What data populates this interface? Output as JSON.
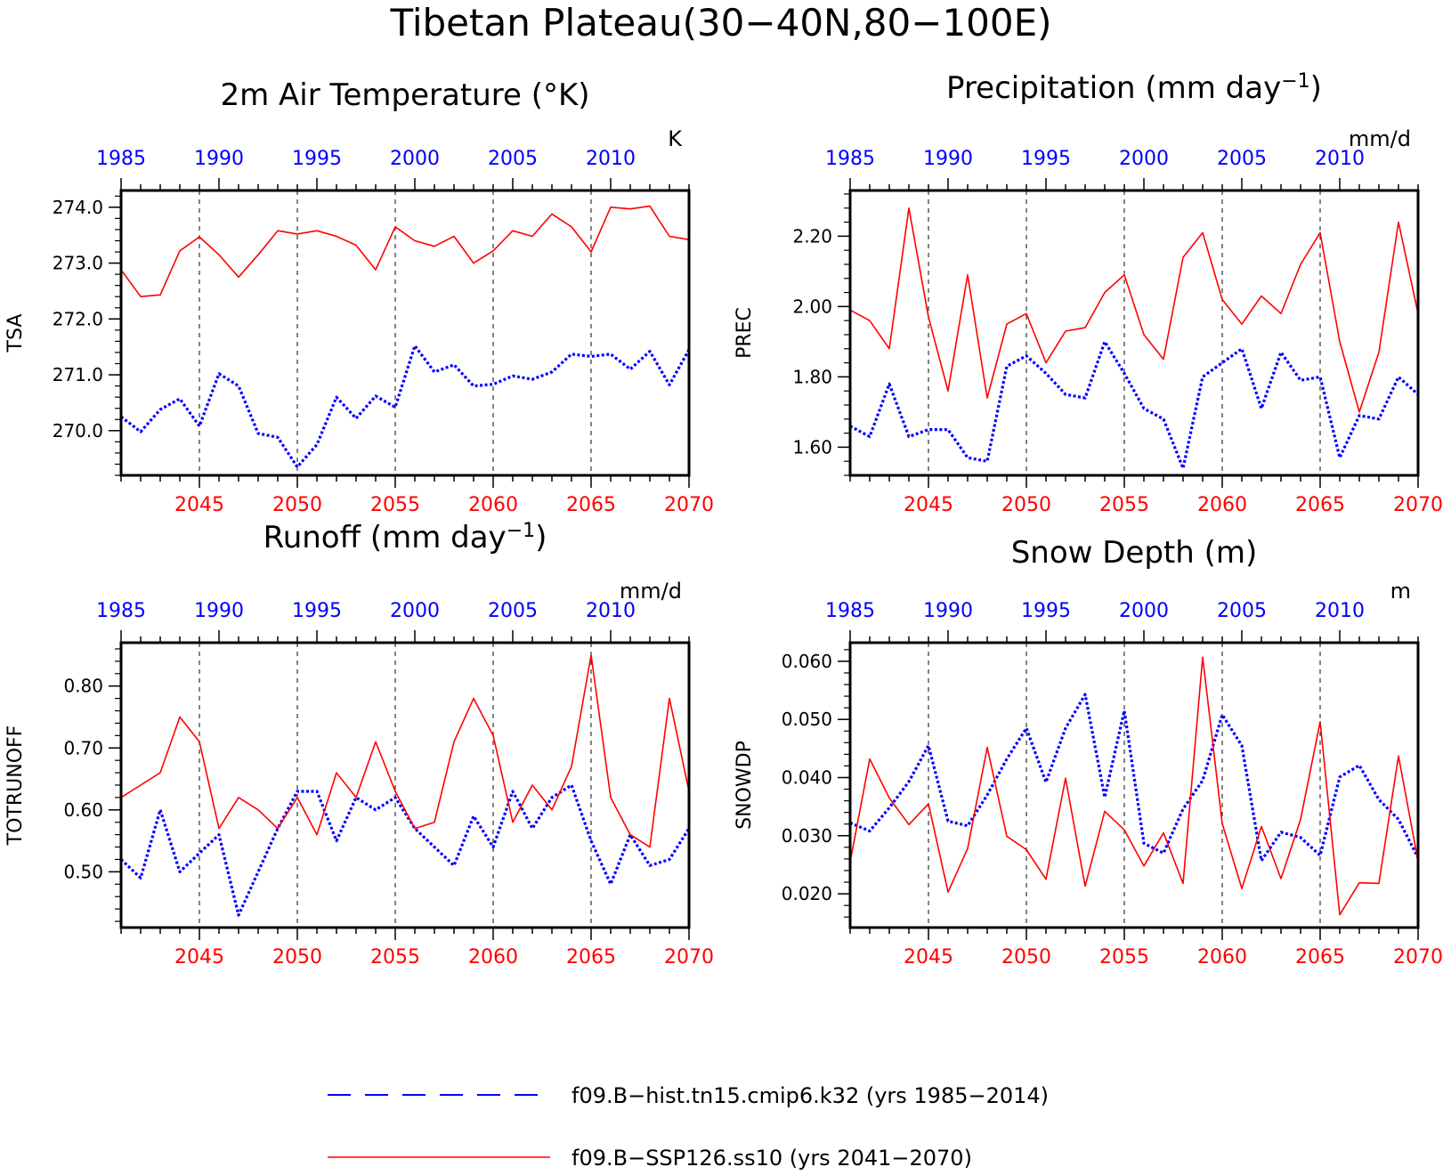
{
  "figure": {
    "title": "Tibetan Plateau(30−40N,80−100E)",
    "hist_color": "#0000ff",
    "ssp_color": "#ff0000"
  },
  "legend": [
    {
      "label": "f09.B−hist.tn15.cmip6.k32 (yrs 1985−2014)",
      "color": "#0000ff",
      "style": "dashed"
    },
    {
      "label": "f09.B−SSP126.ss10 (yrs 2041−2070)",
      "color": "#ff0000",
      "style": "solid"
    }
  ],
  "chart_data": [
    {
      "type": "line",
      "title": "2m Air Temperature (°K)",
      "ylabel": "TSA",
      "unit": "K",
      "ylim": [
        269.2,
        274.3
      ],
      "yticks": [
        270.0,
        271.0,
        272.0,
        273.0,
        274.0
      ],
      "ytick_labels": [
        "270.0",
        "271.0",
        "272.0",
        "273.0",
        "274.0"
      ],
      "top_axis": {
        "xlim": [
          1985,
          2014
        ],
        "ticks": [
          1985,
          1990,
          1995,
          2000,
          2005,
          2010
        ],
        "labels": [
          "1985",
          "1990",
          "1995",
          "2000",
          "2005",
          "2010"
        ]
      },
      "bottom_axis": {
        "xlim": [
          2041,
          2070
        ],
        "ticks": [
          2045,
          2050,
          2055,
          2060,
          2065,
          2070
        ],
        "labels": [
          "2045",
          "2050",
          "2055",
          "2060",
          "2065",
          "2070"
        ]
      },
      "series": [
        {
          "name": "f09.B−hist.tn15.cmip6.k32",
          "axis": "top",
          "values": [
            270.25,
            269.98,
            270.38,
            270.57,
            270.08,
            271.02,
            270.8,
            269.95,
            269.88,
            269.35,
            269.75,
            270.6,
            270.22,
            270.62,
            270.42,
            271.52,
            271.05,
            271.18,
            270.8,
            270.83,
            270.98,
            270.92,
            271.05,
            271.37,
            271.33,
            271.37,
            271.1,
            271.42,
            270.82,
            271.45
          ]
        },
        {
          "name": "f09.B−SSP126.ss10",
          "axis": "bottom",
          "values": [
            272.88,
            272.4,
            272.43,
            273.22,
            273.47,
            273.15,
            272.75,
            273.15,
            273.58,
            273.52,
            273.58,
            273.48,
            273.32,
            272.88,
            273.65,
            273.4,
            273.3,
            273.48,
            273.0,
            273.22,
            273.58,
            273.48,
            273.88,
            273.65,
            273.2,
            274.0,
            273.97,
            274.02,
            273.48,
            273.42
          ]
        }
      ]
    },
    {
      "type": "line",
      "title": "Precipitation (mm day⁻¹)",
      "ylabel": "PREC",
      "unit": "mm/d",
      "ylim": [
        1.52,
        2.33
      ],
      "yticks": [
        1.6,
        1.8,
        2.0,
        2.2
      ],
      "ytick_labels": [
        "1.60",
        "1.80",
        "2.00",
        "2.20"
      ],
      "top_axis": {
        "xlim": [
          1985,
          2014
        ],
        "ticks": [
          1985,
          1990,
          1995,
          2000,
          2005,
          2010
        ],
        "labels": [
          "1985",
          "1990",
          "1995",
          "2000",
          "2005",
          "2010"
        ]
      },
      "bottom_axis": {
        "xlim": [
          2041,
          2070
        ],
        "ticks": [
          2045,
          2050,
          2055,
          2060,
          2065,
          2070
        ],
        "labels": [
          "2045",
          "2050",
          "2055",
          "2060",
          "2065",
          "2070"
        ]
      },
      "series": [
        {
          "name": "f09.B−hist.tn15.cmip6.k32",
          "axis": "top",
          "values": [
            1.66,
            1.63,
            1.78,
            1.63,
            1.65,
            1.65,
            1.57,
            1.56,
            1.83,
            1.86,
            1.81,
            1.75,
            1.74,
            1.9,
            1.81,
            1.71,
            1.68,
            1.54,
            1.8,
            1.84,
            1.88,
            1.71,
            1.87,
            1.79,
            1.8,
            1.57,
            1.69,
            1.68,
            1.8,
            1.75
          ]
        },
        {
          "name": "f09.B−SSP126.ss10",
          "axis": "bottom",
          "values": [
            1.99,
            1.96,
            1.88,
            2.28,
            1.97,
            1.76,
            2.09,
            1.74,
            1.95,
            1.98,
            1.84,
            1.93,
            1.94,
            2.04,
            2.09,
            1.92,
            1.85,
            2.14,
            2.21,
            2.02,
            1.95,
            2.03,
            1.98,
            2.12,
            2.21,
            1.9,
            1.7,
            1.87,
            2.24,
            1.98
          ]
        }
      ]
    },
    {
      "type": "line",
      "title": "Runoff (mm day⁻¹)",
      "ylabel": "TOTRUNOFF",
      "unit": "mm/d",
      "ylim": [
        0.41,
        0.87
      ],
      "yticks": [
        0.5,
        0.6,
        0.7,
        0.8
      ],
      "ytick_labels": [
        "0.50",
        "0.60",
        "0.70",
        "0.80"
      ],
      "top_axis": {
        "xlim": [
          1985,
          2014
        ],
        "ticks": [
          1985,
          1990,
          1995,
          2000,
          2005,
          2010
        ],
        "labels": [
          "1985",
          "1990",
          "1995",
          "2000",
          "2005",
          "2010"
        ]
      },
      "bottom_axis": {
        "xlim": [
          2041,
          2070
        ],
        "ticks": [
          2045,
          2050,
          2055,
          2060,
          2065,
          2070
        ],
        "labels": [
          "2045",
          "2050",
          "2055",
          "2060",
          "2065",
          "2070"
        ]
      },
      "series": [
        {
          "name": "f09.B−hist.tn15.cmip6.k32",
          "axis": "top",
          "values": [
            0.52,
            0.49,
            0.6,
            0.5,
            0.53,
            0.56,
            0.43,
            0.5,
            0.57,
            0.63,
            0.63,
            0.55,
            0.62,
            0.6,
            0.62,
            0.57,
            0.54,
            0.51,
            0.59,
            0.54,
            0.63,
            0.57,
            0.62,
            0.64,
            0.55,
            0.48,
            0.56,
            0.51,
            0.52,
            0.57
          ]
        },
        {
          "name": "f09.B−SSP126.ss10",
          "axis": "bottom",
          "values": [
            0.62,
            0.64,
            0.66,
            0.75,
            0.71,
            0.57,
            0.62,
            0.6,
            0.57,
            0.62,
            0.56,
            0.66,
            0.62,
            0.71,
            0.63,
            0.57,
            0.58,
            0.71,
            0.78,
            0.72,
            0.58,
            0.64,
            0.6,
            0.67,
            0.85,
            0.62,
            0.56,
            0.54,
            0.78,
            0.63
          ]
        }
      ]
    },
    {
      "type": "line",
      "title": "Snow Depth (m)",
      "ylabel": "SNOWDP",
      "unit": "m",
      "ylim": [
        0.0142,
        0.0632
      ],
      "yticks": [
        0.02,
        0.03,
        0.04,
        0.05,
        0.06
      ],
      "ytick_labels": [
        "0.020",
        "0.030",
        "0.040",
        "0.050",
        "0.060"
      ],
      "top_axis": {
        "xlim": [
          1985,
          2014
        ],
        "ticks": [
          1985,
          1990,
          1995,
          2000,
          2005,
          2010
        ],
        "labels": [
          "1985",
          "1990",
          "1995",
          "2000",
          "2005",
          "2010"
        ]
      },
      "bottom_axis": {
        "xlim": [
          2041,
          2070
        ],
        "ticks": [
          2045,
          2050,
          2055,
          2060,
          2065,
          2070
        ],
        "labels": [
          "2045",
          "2050",
          "2055",
          "2060",
          "2065",
          "2070"
        ]
      },
      "series": [
        {
          "name": "f09.B−hist.tn15.cmip6.k32",
          "axis": "top",
          "values": [
            0.0322,
            0.0308,
            0.0348,
            0.0393,
            0.0455,
            0.0325,
            0.0317,
            0.037,
            0.0432,
            0.0485,
            0.0392,
            0.0485,
            0.0543,
            0.0366,
            0.0515,
            0.0287,
            0.027,
            0.0346,
            0.0395,
            0.0508,
            0.0455,
            0.0257,
            0.0306,
            0.0297,
            0.0266,
            0.0401,
            0.0421,
            0.0362,
            0.0328,
            0.0262
          ]
        },
        {
          "name": "f09.B−SSP126.ss10",
          "axis": "bottom",
          "values": [
            0.0255,
            0.0432,
            0.0365,
            0.0319,
            0.0355,
            0.0203,
            0.0278,
            0.0452,
            0.0299,
            0.0276,
            0.0225,
            0.0399,
            0.0213,
            0.0342,
            0.031,
            0.0248,
            0.0305,
            0.0218,
            0.0607,
            0.0321,
            0.0209,
            0.0316,
            0.0226,
            0.0328,
            0.0496,
            0.0164,
            0.0219,
            0.0218,
            0.0437,
            0.0256
          ]
        }
      ]
    }
  ]
}
